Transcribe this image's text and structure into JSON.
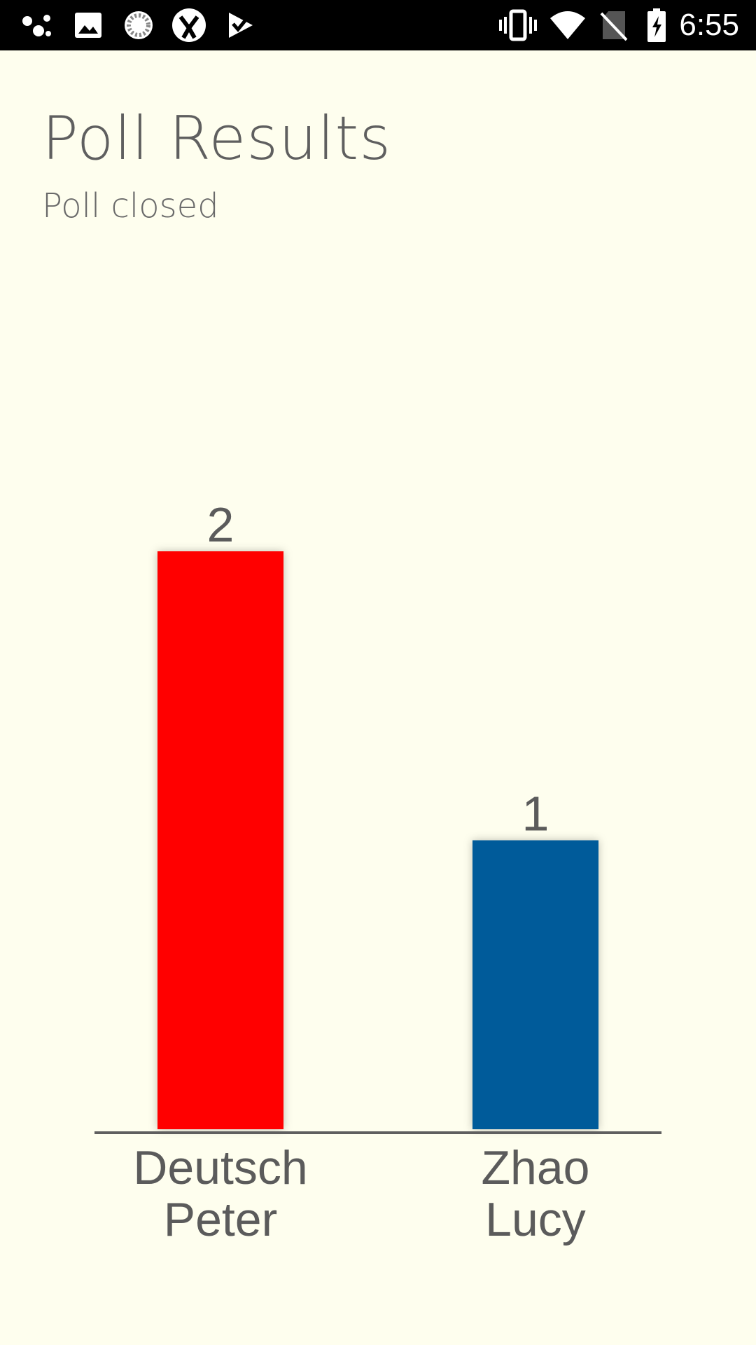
{
  "status_bar": {
    "time": "6:55",
    "left_icons": [
      "assistant-dots-icon",
      "image-icon",
      "loading-circle-icon",
      "sync-app-icon",
      "checkmark-flag-icon"
    ],
    "right_icons": [
      "vibrate-icon",
      "wifi-icon",
      "no-sim-icon",
      "battery-charging-icon"
    ]
  },
  "header": {
    "title": "Poll Results",
    "subtitle": "Poll closed"
  },
  "colors": {
    "background": "#fefeee",
    "text": "#5f5f5f",
    "axis": "#5f5f5f"
  },
  "chart_data": {
    "type": "bar",
    "categories": [
      [
        "Deutsch",
        "Peter"
      ],
      [
        "Zhao",
        "Lucy"
      ]
    ],
    "values": [
      2,
      1
    ],
    "colors": [
      "#ff0000",
      "#005b9a"
    ],
    "ylim": [
      0,
      2
    ],
    "grid": false
  }
}
